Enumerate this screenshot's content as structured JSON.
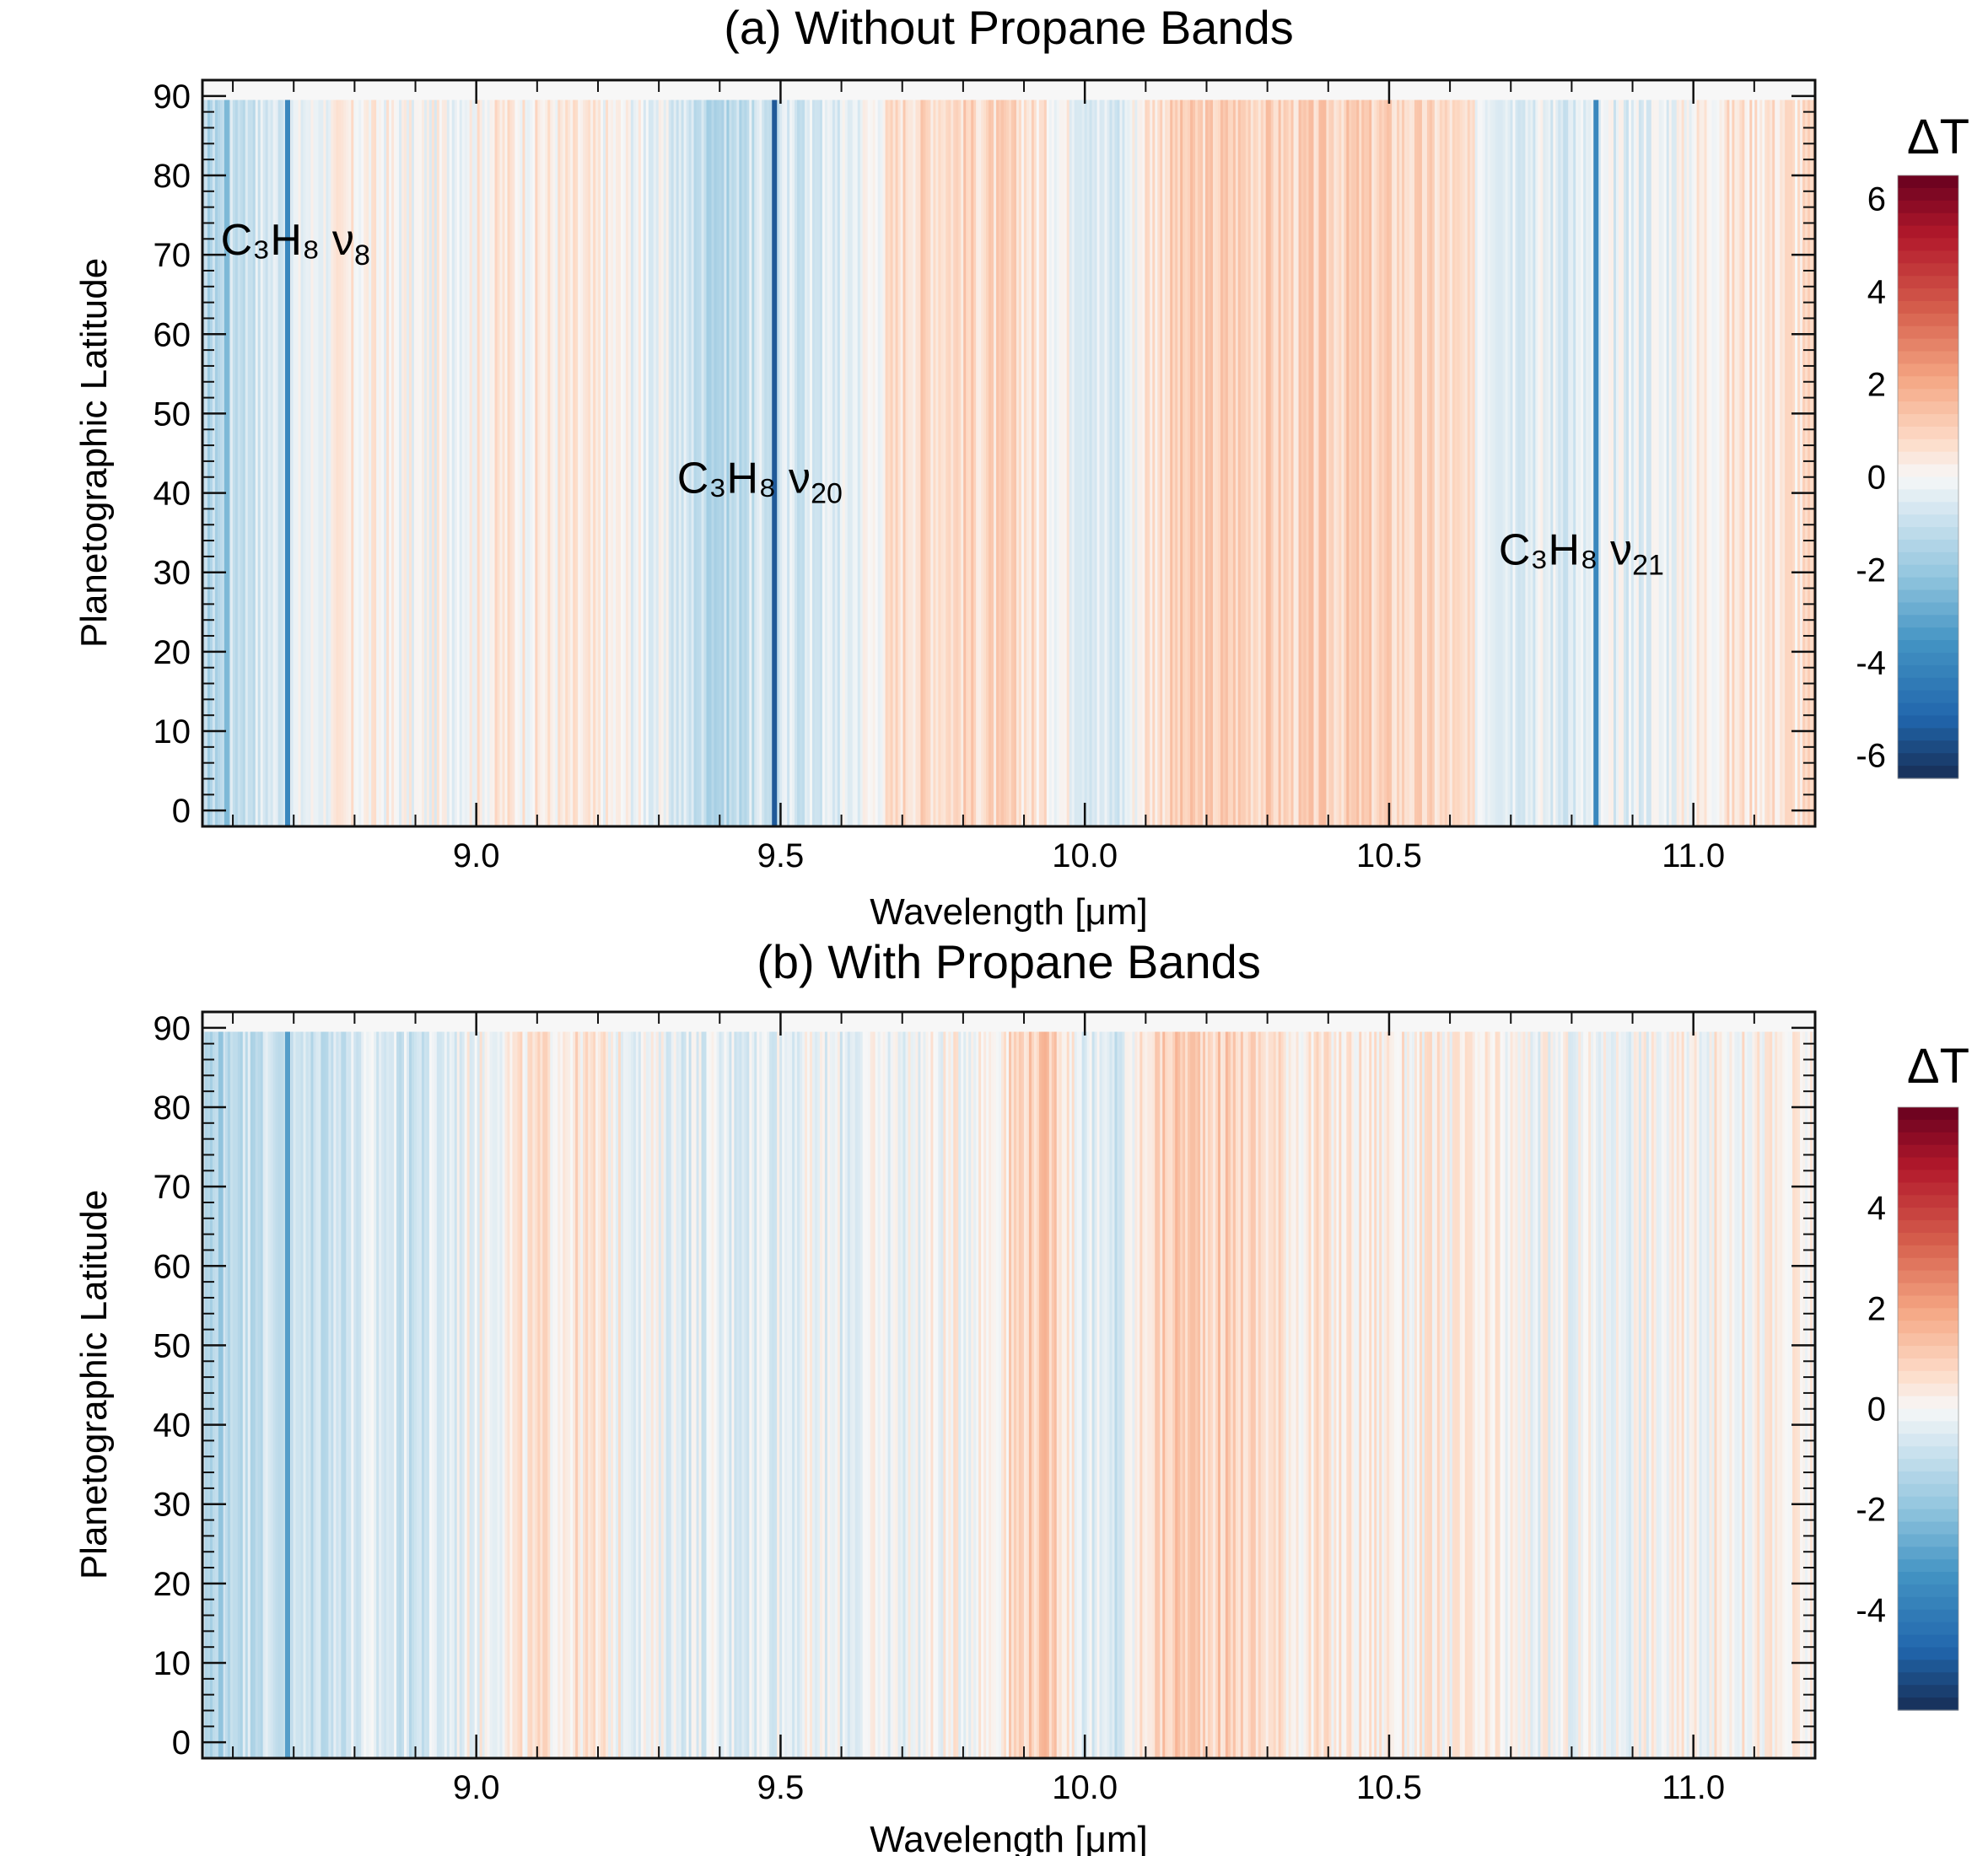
{
  "chart_data": [
    {
      "type": "heatmap",
      "title": "(a) Without Propane Bands",
      "xlabel": "Wavelength [μm]",
      "ylabel": "Planetographic Latitude",
      "xlim": [
        8.55,
        11.2
      ],
      "ylim": [
        -2,
        92
      ],
      "x_ticks": [
        9.0,
        9.5,
        10.0,
        10.5,
        11.0
      ],
      "x_tick_labels": [
        "9.0",
        "9.5",
        "10.0",
        "10.5",
        "11.0"
      ],
      "y_ticks": [
        0,
        10,
        20,
        30,
        40,
        50,
        60,
        70,
        80,
        90
      ],
      "y_tick_labels": [
        "0",
        "10",
        "20",
        "30",
        "40",
        "50",
        "60",
        "70",
        "80",
        "90"
      ],
      "colorbar": {
        "title": "ΔT",
        "range": [
          -6.5,
          6.5
        ],
        "ticks": [
          6,
          4,
          2,
          0,
          -2,
          -4,
          -6
        ],
        "tick_labels": [
          "6",
          "4",
          "2",
          "0",
          "-2",
          "-4",
          "-6"
        ]
      },
      "annotations": [
        {
          "base": "C₃H₈",
          "mode": "ν",
          "sub": "8",
          "x": 8.58,
          "y": 70
        },
        {
          "base": "C₃H₈",
          "mode": "ν",
          "sub": "20",
          "x": 9.33,
          "y": 40
        },
        {
          "base": "C₃H₈",
          "mode": "ν",
          "sub": "21",
          "x": 10.68,
          "y": 31
        }
      ],
      "profile_x": [
        8.55,
        8.6,
        8.65,
        8.7,
        8.75,
        8.8,
        8.85,
        8.9,
        8.95,
        9.0,
        9.05,
        9.1,
        9.15,
        9.2,
        9.25,
        9.3,
        9.35,
        9.4,
        9.45,
        9.5,
        9.55,
        9.6,
        9.65,
        9.7,
        9.75,
        9.8,
        9.85,
        9.9,
        9.95,
        10.0,
        10.05,
        10.1,
        10.15,
        10.2,
        10.25,
        10.3,
        10.35,
        10.4,
        10.45,
        10.5,
        10.55,
        10.6,
        10.65,
        10.7,
        10.75,
        10.8,
        10.85,
        10.9,
        10.95,
        11.0,
        11.05,
        11.1,
        11.15,
        11.2
      ],
      "profile_dT": [
        -1.5,
        -1.0,
        -0.6,
        -0.4,
        0.0,
        0.2,
        0.1,
        -0.1,
        0.0,
        0.2,
        0.4,
        0.3,
        0.3,
        0.2,
        0.0,
        -0.3,
        -0.8,
        -1.4,
        -0.9,
        -0.7,
        -0.6,
        -0.4,
        0.1,
        0.8,
        0.9,
        0.9,
        0.8,
        0.7,
        0.3,
        -0.2,
        -0.8,
        0.6,
        1.0,
        1.0,
        1.1,
        1.0,
        0.9,
        1.0,
        1.0,
        0.9,
        0.8,
        0.7,
        0.1,
        -0.2,
        -0.3,
        -0.5,
        -0.4,
        -0.3,
        -0.2,
        0.2,
        0.5,
        0.6,
        0.6,
        0.6
      ],
      "strong_lines": [
        {
          "x": 8.59,
          "dT": -2.5
        },
        {
          "x": 8.69,
          "dT": -4.0
        },
        {
          "x": 9.49,
          "dT": -5.5
        },
        {
          "x": 10.84,
          "dT": -4.0
        }
      ]
    },
    {
      "type": "heatmap",
      "title": "(b) With Propane Bands",
      "xlabel": "Wavelength [μm]",
      "ylabel": "Planetographic Latitude",
      "xlim": [
        8.55,
        11.2
      ],
      "ylim": [
        -2,
        92
      ],
      "x_ticks": [
        9.0,
        9.5,
        10.0,
        10.5,
        11.0
      ],
      "x_tick_labels": [
        "9.0",
        "9.5",
        "10.0",
        "10.5",
        "11.0"
      ],
      "y_ticks": [
        0,
        10,
        20,
        30,
        40,
        50,
        60,
        70,
        80,
        90
      ],
      "y_tick_labels": [
        "0",
        "10",
        "20",
        "30",
        "40",
        "50",
        "60",
        "70",
        "80",
        "90"
      ],
      "colorbar": {
        "title": "ΔT",
        "range": [
          -6,
          6
        ],
        "ticks": [
          4,
          2,
          0,
          -2,
          -4
        ],
        "tick_labels": [
          "4",
          "2",
          "0",
          "-2",
          "-4"
        ]
      },
      "annotations": [],
      "profile_x": [
        8.55,
        8.6,
        8.65,
        8.7,
        8.75,
        8.8,
        8.85,
        8.9,
        8.95,
        9.0,
        9.05,
        9.1,
        9.15,
        9.2,
        9.25,
        9.3,
        9.35,
        9.4,
        9.45,
        9.5,
        9.55,
        9.6,
        9.65,
        9.7,
        9.75,
        9.8,
        9.85,
        9.9,
        9.95,
        10.0,
        10.05,
        10.1,
        10.15,
        10.2,
        10.25,
        10.3,
        10.35,
        10.4,
        10.45,
        10.5,
        10.55,
        10.6,
        10.65,
        10.7,
        10.75,
        10.8,
        10.85,
        10.9,
        10.95,
        11.0,
        11.05,
        11.1,
        11.15,
        11.2
      ],
      "profile_dT": [
        -1.2,
        -0.9,
        -0.8,
        -0.9,
        -0.8,
        -0.6,
        -0.5,
        -0.8,
        -0.4,
        0.0,
        0.2,
        0.4,
        0.5,
        0.3,
        0.0,
        -0.2,
        -0.3,
        -0.4,
        -0.3,
        -0.2,
        -0.2,
        -0.3,
        -0.2,
        -0.1,
        0.0,
        0.1,
        0.3,
        1.0,
        1.1,
        -0.3,
        -0.8,
        0.6,
        1.1,
        1.0,
        0.9,
        0.6,
        0.4,
        0.3,
        0.3,
        0.3,
        0.2,
        0.2,
        0.1,
        0.0,
        -0.1,
        -0.1,
        -0.1,
        0.0,
        0.0,
        0.1,
        0.2,
        0.2,
        0.1,
        0.0
      ],
      "strong_lines": [
        {
          "x": 8.58,
          "dT": -2.0
        },
        {
          "x": 8.69,
          "dT": -3.0
        }
      ]
    }
  ]
}
